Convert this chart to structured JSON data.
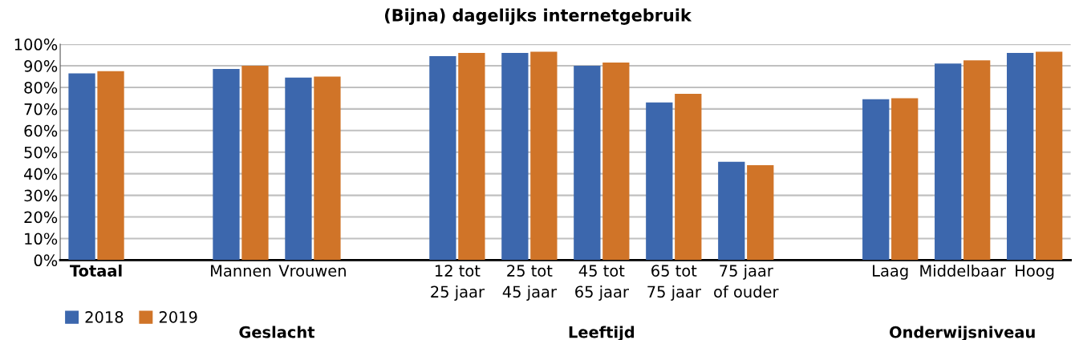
{
  "chart_data": {
    "type": "bar",
    "title": "(Bijna) dagelijks internetgebruik",
    "categories": [
      "Totaal",
      null,
      "Mannen",
      "Vrouwen",
      null,
      "12 tot\n25 jaar",
      "25 tot\n45 jaar",
      "45 tot\n65 jaar",
      "65 tot\n75 jaar",
      "75 jaar\nof ouder",
      null,
      "Laag",
      "Middelbaar",
      "Hoog"
    ],
    "series": [
      {
        "name": "2018",
        "color": "#3c67ad",
        "values": [
          86.5,
          null,
          88.5,
          84.5,
          null,
          94.5,
          96,
          90,
          73,
          45.5,
          null,
          74.5,
          91,
          96
        ]
      },
      {
        "name": "2019",
        "color": "#d07428",
        "values": [
          87.5,
          null,
          90,
          85,
          null,
          96,
          96.5,
          91.5,
          77,
          44,
          null,
          75,
          92.5,
          96.5
        ]
      }
    ],
    "ylim": [
      0,
      100
    ],
    "yticks": [
      {
        "value": 0,
        "label": "0%"
      },
      {
        "value": 10,
        "label": "10%"
      },
      {
        "value": 20,
        "label": "20%"
      },
      {
        "value": 30,
        "label": "30%"
      },
      {
        "value": 40,
        "label": "40%"
      },
      {
        "value": 50,
        "label": "50%"
      },
      {
        "value": 60,
        "label": "60%"
      },
      {
        "value": 70,
        "label": "70%"
      },
      {
        "value": 80,
        "label": "80%"
      },
      {
        "value": 90,
        "label": "90%"
      },
      {
        "value": 100,
        "label": "100%"
      }
    ],
    "grid": "y",
    "legend": "bottom left",
    "annotations": [
      "Geslacht",
      "Leeftijd",
      "Onderwijsniveau"
    ]
  }
}
